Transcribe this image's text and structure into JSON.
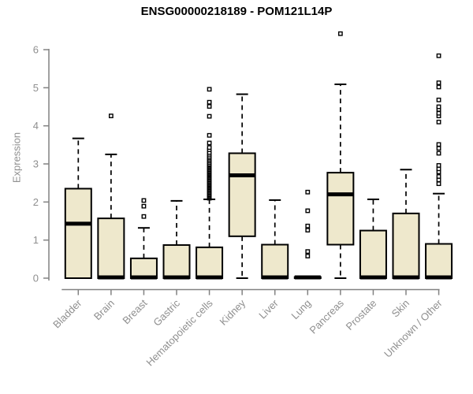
{
  "chart_data": {
    "type": "boxplot",
    "title": "ENSG00000218189 - POM121L14P",
    "xlabel": "",
    "ylabel": "Expression",
    "ylim": [
      0,
      6.5
    ],
    "yticks": [
      0,
      1,
      2,
      3,
      4,
      5,
      6
    ],
    "grid": false,
    "legend": "none",
    "colors": {
      "box_fill": "#EEE8CC",
      "box_stroke": "#000000",
      "median": "#000000",
      "whisker": "#000000",
      "outlier_fill": "#ffffff",
      "axis_line": "#828282",
      "tick_label": "#8f8f8f",
      "title": "#000000"
    },
    "categories": [
      "Bladder",
      "Brain",
      "Breast",
      "Gastric",
      "Hematopoietic cells",
      "Kidney",
      "Liver",
      "Lung",
      "Pancreas",
      "Prostate",
      "Skin",
      "Unknown / Other"
    ],
    "series": [
      {
        "label": "Bladder",
        "low": 0,
        "q1": 0,
        "median": 1.43,
        "q3": 2.35,
        "high": 3.67,
        "outliers": []
      },
      {
        "label": "Brain",
        "low": 0,
        "q1": 0,
        "median": 0.02,
        "q3": 1.57,
        "high": 3.25,
        "outliers": [
          4.26
        ]
      },
      {
        "label": "Breast",
        "low": 0,
        "q1": 0,
        "median": 0.02,
        "q3": 0.52,
        "high": 1.32,
        "outliers": [
          1.62,
          1.89,
          2.04
        ]
      },
      {
        "label": "Gastric",
        "low": 0,
        "q1": 0,
        "median": 0.02,
        "q3": 0.87,
        "high": 2.03,
        "outliers": []
      },
      {
        "label": "Hematopoietic cells",
        "low": 0,
        "q1": 0,
        "median": 0.02,
        "q3": 0.81,
        "high": 2.07,
        "outliers": [
          2.1,
          2.13,
          2.16,
          2.19,
          2.22,
          2.25,
          2.28,
          2.31,
          2.34,
          2.37,
          2.4,
          2.43,
          2.46,
          2.49,
          2.52,
          2.55,
          2.58,
          2.61,
          2.64,
          2.67,
          2.7,
          2.73,
          2.76,
          2.79,
          2.82,
          2.85,
          2.88,
          2.91,
          2.94,
          2.97,
          3.0,
          3.04,
          3.08,
          3.12,
          3.16,
          3.2,
          3.25,
          3.3,
          3.37,
          3.43,
          3.55,
          3.75,
          4.25,
          4.51,
          4.62,
          4.96
        ]
      },
      {
        "label": "Kidney",
        "low": 0,
        "q1": 1.1,
        "median": 2.7,
        "q3": 3.28,
        "high": 4.83,
        "outliers": []
      },
      {
        "label": "Liver",
        "low": 0,
        "q1": 0,
        "median": 0.02,
        "q3": 0.88,
        "high": 2.05,
        "outliers": []
      },
      {
        "label": "Lung",
        "low": 0,
        "q1": 0,
        "median": 0.02,
        "q3": 0.03,
        "high": 0.03,
        "outliers": [
          0.58,
          0.7,
          1.26,
          1.37,
          1.77,
          2.26
        ]
      },
      {
        "label": "Pancreas",
        "low": 0,
        "q1": 0.88,
        "median": 2.2,
        "q3": 2.77,
        "high": 5.09,
        "outliers": [
          6.42
        ]
      },
      {
        "label": "Prostate",
        "low": 0,
        "q1": 0,
        "median": 0.02,
        "q3": 1.25,
        "high": 2.07,
        "outliers": []
      },
      {
        "label": "Skin",
        "low": 0,
        "q1": 0,
        "median": 0.02,
        "q3": 1.7,
        "high": 2.85,
        "outliers": []
      },
      {
        "label": "Unknown / Other",
        "low": 0,
        "q1": 0,
        "median": 0.02,
        "q3": 0.9,
        "high": 2.22,
        "outliers": [
          2.48,
          2.58,
          2.67,
          2.79,
          2.87,
          2.96,
          3.28,
          3.41,
          3.51,
          4.1,
          4.26,
          4.33,
          4.43,
          4.5,
          4.68,
          5.02,
          5.13,
          5.84
        ]
      }
    ]
  }
}
